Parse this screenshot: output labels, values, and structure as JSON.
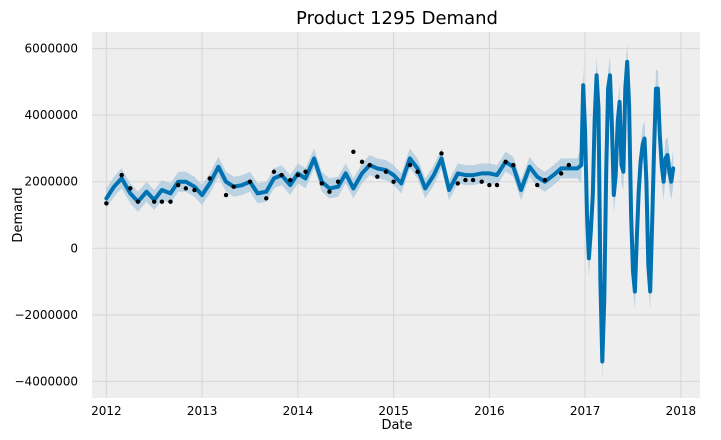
{
  "chart_data": {
    "type": "line",
    "title": "Product 1295 Demand",
    "xlabel": "Date",
    "ylabel": "Demand",
    "xlim": [
      2011.85,
      2018.2
    ],
    "ylim": [
      -4500000,
      6500000
    ],
    "x_ticks": [
      2012,
      2013,
      2014,
      2015,
      2016,
      2017,
      2018
    ],
    "x_tick_labels": [
      "2012",
      "2013",
      "2014",
      "2015",
      "2016",
      "2017",
      "2018"
    ],
    "y_ticks": [
      -4000000,
      -2000000,
      0,
      2000000,
      4000000,
      6000000
    ],
    "y_tick_labels": [
      "−4000000",
      "−2000000",
      "0",
      "2000000",
      "4000000",
      "6000000"
    ],
    "grid": true,
    "colors": {
      "background": "#eeeeee",
      "grid": "#d6d6d6",
      "forecast": "#0072B2",
      "interval": "#a9c8de",
      "observed": "#000000"
    },
    "series": [
      {
        "role": "forecast",
        "x": [
          2012.0,
          2012.08,
          2012.16,
          2012.25,
          2012.33,
          2012.42,
          2012.5,
          2012.58,
          2012.67,
          2012.75,
          2012.83,
          2012.92,
          2013.0,
          2013.08,
          2013.17,
          2013.25,
          2013.33,
          2013.42,
          2013.5,
          2013.58,
          2013.67,
          2013.75,
          2013.83,
          2013.92,
          2014.0,
          2014.08,
          2014.17,
          2014.25,
          2014.33,
          2014.42,
          2014.5,
          2014.58,
          2014.67,
          2014.75,
          2014.83,
          2014.92,
          2015.0,
          2015.08,
          2015.17,
          2015.25,
          2015.33,
          2015.42,
          2015.5,
          2015.58,
          2015.67,
          2015.75,
          2015.83,
          2015.92,
          2016.0,
          2016.08,
          2016.17,
          2016.25,
          2016.33,
          2016.42,
          2016.5,
          2016.58,
          2016.67,
          2016.75,
          2016.83,
          2016.92,
          2016.96,
          2016.98,
          2017.0,
          2017.02,
          2017.04,
          2017.06,
          2017.08,
          2017.1,
          2017.12,
          2017.14,
          2017.16,
          2017.18,
          2017.2,
          2017.22,
          2017.24,
          2017.26,
          2017.28,
          2017.3,
          2017.32,
          2017.34,
          2017.36,
          2017.38,
          2017.4,
          2017.42,
          2017.44,
          2017.46,
          2017.48,
          2017.5,
          2017.52,
          2017.54,
          2017.56,
          2017.58,
          2017.6,
          2017.62,
          2017.64,
          2017.66,
          2017.68,
          2017.7,
          2017.72,
          2017.74,
          2017.76,
          2017.78,
          2017.8,
          2017.82,
          2017.84,
          2017.86,
          2017.88,
          2017.9,
          2017.92
        ],
        "y": [
          1500000,
          1850000,
          2100000,
          1650000,
          1400000,
          1700000,
          1450000,
          1750000,
          1650000,
          2000000,
          2000000,
          1850000,
          1600000,
          1950000,
          2450000,
          2000000,
          1850000,
          1900000,
          2000000,
          1650000,
          1700000,
          2100000,
          2200000,
          1900000,
          2250000,
          2100000,
          2700000,
          2000000,
          1800000,
          1850000,
          2250000,
          1800000,
          2250000,
          2500000,
          2400000,
          2350000,
          2200000,
          1950000,
          2700000,
          2400000,
          1800000,
          2200000,
          2700000,
          1750000,
          2250000,
          2200000,
          2200000,
          2250000,
          2250000,
          2200000,
          2600000,
          2450000,
          1750000,
          2450000,
          2150000,
          2000000,
          2200000,
          2400000,
          2400000,
          2400000,
          2500000,
          4900000,
          3500000,
          1000000,
          -300000,
          500000,
          1600000,
          3900000,
          5200000,
          4200000,
          -1000000,
          -3400000,
          -1500000,
          2300000,
          4800000,
          5200000,
          3700000,
          1600000,
          2200000,
          3800000,
          4400000,
          2500000,
          2300000,
          4800000,
          5600000,
          4300000,
          1000000,
          -700000,
          -1300000,
          300000,
          1700000,
          2600000,
          3100000,
          3300000,
          2000000,
          -500000,
          -1300000,
          700000,
          2900000,
          4800000,
          4800000,
          3400000,
          2500000,
          2000000,
          2700000,
          2800000,
          2300000,
          2000000,
          2400000
        ]
      },
      {
        "role": "observed",
        "x": [
          2012.0,
          2012.16,
          2012.25,
          2012.33,
          2012.5,
          2012.58,
          2012.67,
          2012.75,
          2012.83,
          2012.92,
          2013.08,
          2013.25,
          2013.33,
          2013.5,
          2013.67,
          2013.75,
          2013.83,
          2013.92,
          2014.0,
          2014.08,
          2014.25,
          2014.33,
          2014.42,
          2014.58,
          2014.67,
          2014.75,
          2014.83,
          2014.92,
          2015.0,
          2015.17,
          2015.25,
          2015.5,
          2015.67,
          2015.75,
          2015.83,
          2015.92,
          2016.0,
          2016.08,
          2016.17,
          2016.25,
          2016.5,
          2016.58,
          2016.75,
          2016.83
        ],
        "y": [
          1350000,
          2200000,
          1800000,
          1400000,
          1400000,
          1400000,
          1400000,
          1900000,
          1800000,
          1750000,
          2100000,
          1600000,
          1850000,
          2000000,
          1500000,
          2300000,
          2200000,
          2050000,
          2200000,
          2300000,
          1950000,
          1700000,
          2000000,
          2900000,
          2600000,
          2500000,
          2150000,
          2300000,
          2000000,
          2500000,
          2300000,
          2850000,
          1950000,
          2050000,
          2050000,
          2000000,
          1900000,
          1900000,
          2600000,
          2500000,
          1900000,
          2050000,
          2250000,
          2500000
        ]
      }
    ]
  }
}
